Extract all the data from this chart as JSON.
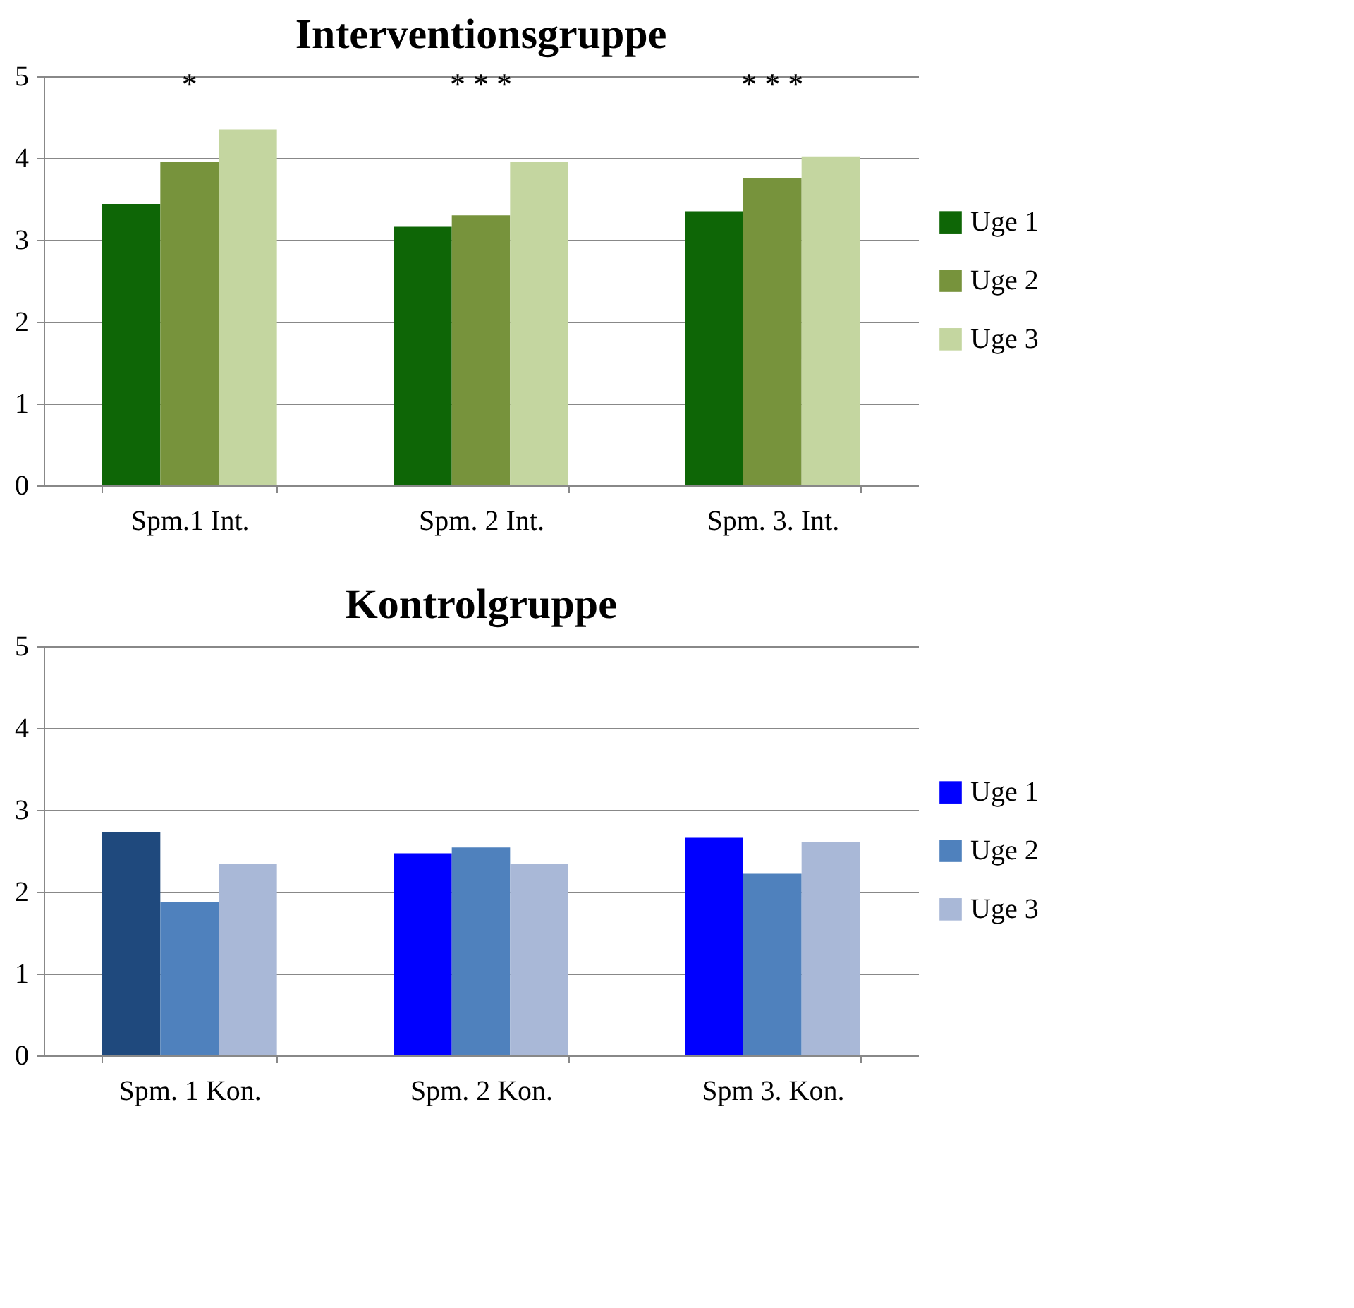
{
  "chart_data": [
    {
      "type": "bar",
      "title": "Interventionsgruppe",
      "categories": [
        "Spm.1 Int.",
        "Spm. 2 Int.",
        "Spm. 3. Int."
      ],
      "series": [
        {
          "name": "Uge 1",
          "color": "#0e6606",
          "values": [
            3.44,
            3.16,
            3.35
          ]
        },
        {
          "name": "Uge 2",
          "color": "#77933c",
          "values": [
            3.95,
            3.3,
            3.75
          ]
        },
        {
          "name": "Uge 3",
          "color": "#c4d6a0",
          "values": [
            4.35,
            3.95,
            4.02
          ]
        }
      ],
      "ylim": [
        0,
        5
      ],
      "yticks": [
        0,
        1,
        2,
        3,
        4,
        5
      ],
      "grid": "y",
      "legend": "right",
      "annotations": [
        "*",
        "* * *",
        "* * *"
      ]
    },
    {
      "type": "bar",
      "title": "Kontrolgruppe",
      "categories": [
        "Spm. 1 Kon.",
        "Spm. 2 Kon.",
        "Spm 3. Kon."
      ],
      "series": [
        {
          "name": "Uge 1",
          "color": "#0000ff",
          "colors": [
            "#1f497d",
            "#0000ff",
            "#0000ff"
          ],
          "values": [
            2.73,
            2.47,
            2.66
          ]
        },
        {
          "name": "Uge 2",
          "color": "#4f81bd",
          "values": [
            1.87,
            2.54,
            2.22
          ]
        },
        {
          "name": "Uge 3",
          "color": "#a9b8d7",
          "values": [
            2.34,
            2.34,
            2.61
          ]
        }
      ],
      "ylim": [
        0,
        5
      ],
      "yticks": [
        0,
        1,
        2,
        3,
        4,
        5
      ],
      "grid": "y",
      "legend": "right"
    }
  ]
}
